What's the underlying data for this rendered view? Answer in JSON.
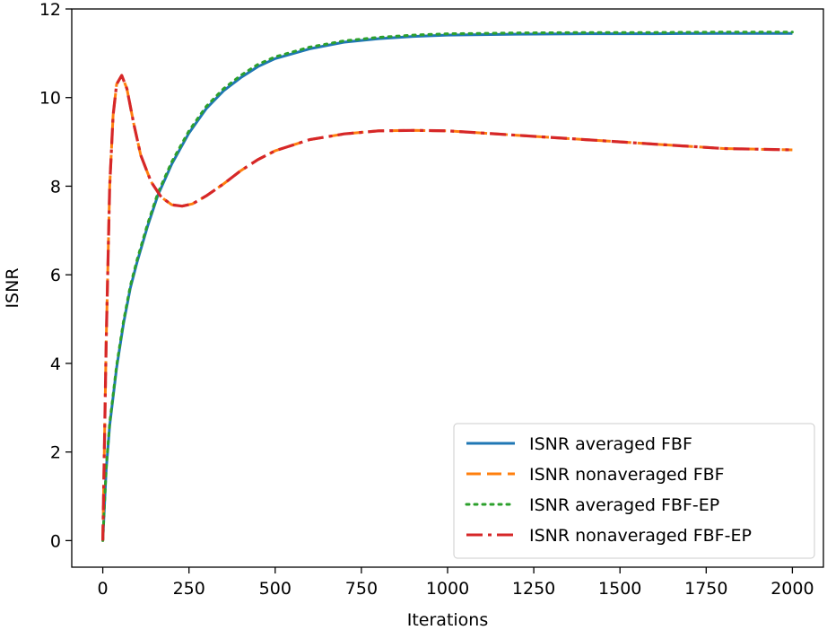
{
  "chart_data": {
    "type": "line",
    "xlabel": "Iterations",
    "ylabel": "ISNR",
    "xlim": [
      -90,
      2090
    ],
    "ylim": [
      -0.6,
      12
    ],
    "xticks": [
      0,
      250,
      500,
      750,
      1000,
      1250,
      1500,
      1750,
      2000
    ],
    "yticks": [
      0,
      2,
      4,
      6,
      8,
      10,
      12
    ],
    "legend_position": "lower-right",
    "grid": false,
    "series": [
      {
        "name": "ISNR averaged FBF",
        "color": "#1f77b4",
        "style": "solid",
        "x": [
          0,
          10,
          20,
          40,
          60,
          80,
          100,
          130,
          160,
          200,
          250,
          300,
          350,
          400,
          450,
          500,
          600,
          700,
          800,
          900,
          1000,
          1100,
          1200,
          1400,
          1600,
          1800,
          2000
        ],
        "y": [
          0,
          1.6,
          2.6,
          3.9,
          4.9,
          5.7,
          6.3,
          7.1,
          7.8,
          8.5,
          9.2,
          9.75,
          10.15,
          10.45,
          10.7,
          10.88,
          11.1,
          11.25,
          11.33,
          11.38,
          11.41,
          11.42,
          11.43,
          11.44,
          11.44,
          11.45,
          11.45
        ]
      },
      {
        "name": "ISNR nonaveraged FBF",
        "color": "#ff7f0e",
        "style": "dashed",
        "x": [
          0,
          10,
          20,
          30,
          40,
          55,
          70,
          90,
          110,
          140,
          170,
          200,
          230,
          260,
          300,
          350,
          400,
          450,
          500,
          600,
          700,
          800,
          900,
          1000,
          1100,
          1200,
          1400,
          1600,
          1800,
          2000
        ],
        "y": [
          0,
          4.5,
          8.0,
          9.6,
          10.3,
          10.5,
          10.2,
          9.4,
          8.7,
          8.1,
          7.75,
          7.58,
          7.55,
          7.6,
          7.78,
          8.05,
          8.35,
          8.6,
          8.8,
          9.05,
          9.18,
          9.25,
          9.26,
          9.25,
          9.2,
          9.15,
          9.05,
          8.95,
          8.85,
          8.82
        ]
      },
      {
        "name": "ISNR averaged FBF-EP",
        "color": "#2ca02c",
        "style": "dotted",
        "x": [
          0,
          10,
          20,
          40,
          60,
          80,
          100,
          130,
          160,
          200,
          250,
          300,
          350,
          400,
          450,
          500,
          600,
          700,
          800,
          900,
          1000,
          1100,
          1200,
          1400,
          1600,
          1800,
          2000
        ],
        "y": [
          0,
          1.65,
          2.65,
          3.95,
          4.95,
          5.75,
          6.35,
          7.15,
          7.85,
          8.55,
          9.25,
          9.8,
          10.2,
          10.5,
          10.75,
          10.92,
          11.14,
          11.28,
          11.36,
          11.41,
          11.44,
          11.45,
          11.46,
          11.47,
          11.47,
          11.48,
          11.48
        ]
      },
      {
        "name": "ISNR nonaveraged FBF-EP",
        "color": "#d62728",
        "style": "dashdot",
        "x": [
          0,
          10,
          20,
          30,
          40,
          55,
          70,
          90,
          110,
          140,
          170,
          200,
          230,
          260,
          300,
          350,
          400,
          450,
          500,
          600,
          700,
          800,
          900,
          1000,
          1100,
          1200,
          1400,
          1600,
          1800,
          2000
        ],
        "y": [
          0,
          4.5,
          8.0,
          9.6,
          10.3,
          10.5,
          10.2,
          9.4,
          8.7,
          8.1,
          7.75,
          7.58,
          7.55,
          7.6,
          7.78,
          8.05,
          8.35,
          8.6,
          8.8,
          9.05,
          9.18,
          9.25,
          9.26,
          9.25,
          9.2,
          9.15,
          9.05,
          8.95,
          8.85,
          8.82
        ]
      }
    ]
  }
}
